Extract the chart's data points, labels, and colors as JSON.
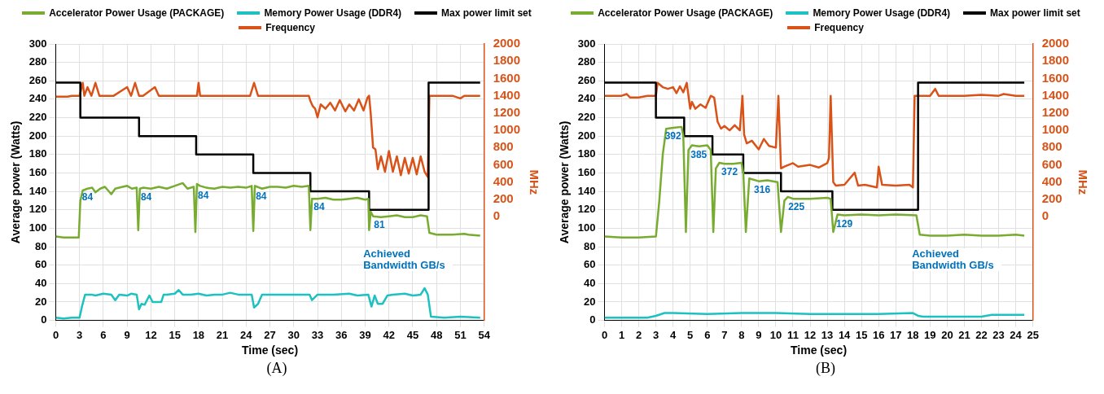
{
  "chart_data": [
    {
      "type": "line",
      "title": "(A)",
      "xlabel": "Time (sec)",
      "ylabel": "Average power (Watts)",
      "y2label": "MHz",
      "xlim": [
        0,
        54
      ],
      "xticks": [
        0,
        3,
        6,
        9,
        12,
        15,
        18,
        21,
        24,
        27,
        30,
        33,
        36,
        39,
        42,
        45,
        48,
        51,
        54
      ],
      "ylim": [
        0,
        300
      ],
      "yticks": [
        0,
        20,
        40,
        60,
        80,
        100,
        120,
        140,
        160,
        180,
        200,
        220,
        240,
        260,
        280,
        300
      ],
      "y2lim": [
        -1200,
        2000
      ],
      "y2ticks": [
        0,
        200,
        400,
        600,
        800,
        1000,
        1200,
        1400,
        1600,
        1800,
        2000
      ],
      "grid": true,
      "legend": "top",
      "marker": "none",
      "line_style": "solid",
      "series": [
        {
          "name": "Accelerator Power Usage (PACKAGE)",
          "color": "#77ac30",
          "x": [
            0,
            1,
            2,
            2.9,
            3.1,
            3.4,
            4,
            4.6,
            5,
            5.6,
            6.2,
            7,
            7.5,
            8,
            9,
            9.6,
            10.2,
            10.4,
            10.6,
            11,
            12,
            13,
            14,
            15,
            16,
            16.6,
            17.4,
            17.6,
            17.8,
            18.2,
            19,
            20,
            21,
            22,
            23,
            24,
            24.7,
            24.9,
            25.1,
            26,
            27,
            28,
            29,
            30,
            31,
            31.9,
            32.1,
            32.3,
            33,
            34,
            35,
            36,
            37,
            38,
            39,
            39.4,
            39.5,
            39.7,
            40,
            41,
            42,
            43,
            44,
            45,
            46,
            46.8,
            47.1,
            48,
            50,
            51.5,
            52,
            53.5
          ],
          "values": [
            91,
            90,
            90,
            90,
            130,
            141,
            143,
            144,
            139,
            143,
            145,
            137,
            143,
            144,
            146,
            143,
            144,
            98,
            143,
            144,
            143,
            145,
            143,
            146,
            149,
            143,
            145,
            96,
            148,
            146,
            144,
            143,
            145,
            144,
            145,
            144,
            146,
            97,
            146,
            143,
            145,
            145,
            144,
            146,
            145,
            146,
            98,
            132,
            132,
            133,
            131,
            131,
            132,
            133,
            131,
            132,
            98,
            118,
            113,
            112,
            113,
            114,
            112,
            112,
            114,
            113,
            95,
            93,
            93,
            94,
            93,
            92
          ]
        },
        {
          "name": "Memory Power Usage (DDR4)",
          "color": "#1ec1c1",
          "x": [
            0,
            1,
            2,
            3,
            3.3,
            3.7,
            4.5,
            5,
            6,
            7,
            7.5,
            8,
            9,
            9.5,
            10.2,
            10.5,
            10.8,
            11.2,
            11.8,
            12.2,
            13.3,
            13.6,
            14,
            15,
            15.5,
            16,
            17,
            18,
            19,
            20,
            21,
            22,
            23,
            24,
            24.7,
            25,
            25.5,
            26,
            28,
            30,
            32,
            32.3,
            33,
            35,
            37,
            38,
            39.4,
            39.8,
            40.2,
            40.6,
            41.2,
            41.8,
            42.5,
            44,
            45,
            46,
            46.5,
            46.9,
            47.3,
            49,
            51,
            53.5
          ],
          "values": [
            3,
            2,
            3,
            3,
            15,
            28,
            28,
            27,
            29,
            28,
            22,
            28,
            27,
            29,
            28,
            12,
            18,
            17,
            27,
            20,
            20,
            28,
            28,
            29,
            33,
            28,
            28,
            29,
            27,
            28,
            28,
            30,
            28,
            28,
            28,
            14,
            18,
            28,
            28,
            28,
            28,
            22,
            28,
            28,
            29,
            27,
            28,
            15,
            27,
            18,
            18,
            27,
            28,
            29,
            27,
            28,
            35,
            28,
            4,
            3,
            4,
            3
          ]
        },
        {
          "name": "Max power limit set",
          "color": "#000000",
          "type": "step",
          "x": [
            0,
            3.1,
            10.5,
            17.7,
            24.9,
            32.1,
            39.5,
            47,
            53.5
          ],
          "values": [
            258,
            220,
            200,
            180,
            160,
            140,
            120,
            258,
            258
          ]
        },
        {
          "name": "Frequency",
          "color": "#d95319",
          "axis": "y2",
          "x": [
            0,
            1.5,
            2,
            3,
            3.4,
            3.6,
            4,
            4.5,
            5,
            5.5,
            6,
            7.3,
            9,
            9.5,
            10,
            10.5,
            11,
            12.5,
            13,
            13.5,
            15,
            17.8,
            18,
            18.2,
            20,
            22,
            24.5,
            25,
            25.5,
            26,
            28,
            30,
            31.9,
            32.1,
            32.4,
            32.7,
            33,
            33.4,
            34,
            34.6,
            35.2,
            35.8,
            36.5,
            37,
            37.6,
            38.2,
            38.8,
            39.3,
            39.5,
            39.7,
            40,
            40.3,
            40.6,
            41,
            41.5,
            42,
            42.5,
            43,
            43.5,
            44,
            44.5,
            45,
            45.5,
            46,
            46.5,
            46.9,
            47.1,
            48,
            50,
            51,
            51.5,
            53.5
          ],
          "values": [
            1390,
            1390,
            1400,
            1400,
            1550,
            1400,
            1500,
            1400,
            1550,
            1400,
            1400,
            1400,
            1500,
            1400,
            1550,
            1400,
            1400,
            1500,
            1400,
            1400,
            1400,
            1400,
            1550,
            1400,
            1400,
            1400,
            1400,
            1550,
            1400,
            1400,
            1400,
            1400,
            1400,
            1340,
            1280,
            1250,
            1150,
            1300,
            1250,
            1320,
            1230,
            1350,
            1220,
            1300,
            1230,
            1360,
            1230,
            1380,
            1400,
            1200,
            800,
            780,
            550,
            700,
            520,
            760,
            520,
            700,
            480,
            680,
            500,
            680,
            490,
            700,
            520,
            460,
            1400,
            1400,
            1400,
            1370,
            1400,
            1400
          ]
        }
      ],
      "annotations": [
        {
          "text": "84",
          "x": 4,
          "y": 143
        },
        {
          "text": "84",
          "x": 11.4,
          "y": 143
        },
        {
          "text": "84",
          "x": 18.6,
          "y": 145
        },
        {
          "text": "84",
          "x": 25.9,
          "y": 144
        },
        {
          "text": "84",
          "x": 33.2,
          "y": 132
        },
        {
          "text": "81",
          "x": 40.8,
          "y": 113
        },
        "Achieved Bandwidth GB/s"
      ]
    },
    {
      "type": "line",
      "title": "(B)",
      "xlabel": "Time (sec)",
      "ylabel": "Average power (Watts)",
      "y2label": "MHz",
      "xlim": [
        0,
        25
      ],
      "xticks": [
        0,
        1,
        2,
        3,
        4,
        5,
        6,
        7,
        8,
        9,
        10,
        11,
        12,
        13,
        14,
        15,
        16,
        17,
        18,
        19,
        20,
        21,
        22,
        23,
        24,
        25
      ],
      "ylim": [
        0,
        300
      ],
      "yticks": [
        0,
        20,
        40,
        60,
        80,
        100,
        120,
        140,
        160,
        180,
        200,
        220,
        240,
        260,
        280,
        300
      ],
      "y2lim": [
        -1200,
        2000
      ],
      "y2ticks": [
        0,
        200,
        400,
        600,
        800,
        1000,
        1200,
        1400,
        1600,
        1800,
        2000
      ],
      "grid": true,
      "legend": "top",
      "marker": "none",
      "line_style": "solid",
      "series": [
        {
          "name": "Accelerator Power Usage (PACKAGE)",
          "color": "#77ac30",
          "x": [
            0,
            1,
            2,
            3,
            3.2,
            3.4,
            3.6,
            4,
            4.5,
            4.6,
            4.75,
            4.9,
            5.1,
            5.5,
            6,
            6.2,
            6.35,
            6.5,
            6.7,
            7,
            7.5,
            8,
            8.1,
            8.25,
            8.45,
            9,
            9.5,
            10.1,
            10.3,
            10.5,
            10.7,
            11,
            12,
            13,
            13.2,
            13.35,
            13.6,
            14,
            15,
            16,
            17,
            18.2,
            18.4,
            19,
            20,
            21,
            22,
            23,
            24,
            24.5
          ],
          "values": [
            91,
            90,
            90,
            91,
            130,
            180,
            208,
            209,
            210,
            200,
            96,
            185,
            190,
            189,
            190,
            185,
            96,
            165,
            171,
            170,
            170,
            171,
            160,
            96,
            154,
            151,
            152,
            150,
            96,
            130,
            134,
            132,
            132,
            133,
            132,
            96,
            115,
            114,
            115,
            114,
            115,
            114,
            93,
            92,
            92,
            93,
            92,
            92,
            93,
            92
          ]
        },
        {
          "name": "Memory Power Usage (DDR4)",
          "color": "#1ec1c1",
          "x": [
            0,
            1,
            2,
            2.5,
            3,
            3.5,
            4,
            6,
            8,
            10,
            12,
            14,
            16,
            18,
            18.3,
            18.6,
            20,
            22,
            22.6,
            23,
            24,
            24.5
          ],
          "values": [
            3,
            3,
            3,
            3,
            5,
            8,
            8,
            7,
            8,
            8,
            7,
            7,
            7,
            8,
            5,
            4,
            4,
            4,
            6,
            6,
            6,
            6
          ]
        },
        {
          "name": "Max power limit set",
          "color": "#000000",
          "type": "step",
          "x": [
            0,
            3,
            4.65,
            6.3,
            8.1,
            10.3,
            13.3,
            18.3,
            24.5
          ],
          "values": [
            258,
            220,
            200,
            180,
            160,
            140,
            120,
            258,
            258
          ]
        },
        {
          "name": "Frequency",
          "color": "#d95319",
          "axis": "y2",
          "x": [
            0,
            1,
            1.3,
            1.5,
            2,
            2.5,
            3,
            3.1,
            3.4,
            3.7,
            4,
            4.2,
            4.4,
            4.6,
            4.8,
            5,
            5.1,
            5.3,
            5.6,
            5.9,
            6.2,
            6.4,
            6.6,
            6.8,
            7,
            7.3,
            7.6,
            7.9,
            8.05,
            8.15,
            8.3,
            8.6,
            9,
            9.3,
            9.6,
            10,
            10.15,
            10.3,
            10.5,
            11,
            11.3,
            12,
            12.5,
            13,
            13.1,
            13.2,
            13.35,
            13.5,
            14,
            14.6,
            14.8,
            15.2,
            15.9,
            16,
            16.2,
            17,
            17.8,
            18,
            18.1,
            18.3,
            19,
            19.3,
            19.5,
            21,
            22,
            23,
            23.3,
            24,
            24.5
          ],
          "values": [
            1400,
            1400,
            1420,
            1380,
            1380,
            1400,
            1400,
            1550,
            1500,
            1480,
            1500,
            1430,
            1510,
            1440,
            1550,
            1250,
            1330,
            1250,
            1300,
            1260,
            1400,
            1380,
            1100,
            1020,
            1050,
            1000,
            1060,
            1000,
            1400,
            950,
            850,
            880,
            780,
            900,
            820,
            800,
            1400,
            560,
            580,
            620,
            580,
            600,
            570,
            620,
            680,
            1400,
            400,
            360,
            370,
            510,
            360,
            370,
            340,
            580,
            370,
            360,
            370,
            340,
            1400,
            1400,
            1400,
            1480,
            1400,
            1400,
            1410,
            1400,
            1420,
            1400,
            1400
          ]
        }
      ],
      "annotations": [
        {
          "text": "392",
          "x": 4,
          "y": 209
        },
        {
          "text": "385",
          "x": 5.5,
          "y": 189
        },
        {
          "text": "372",
          "x": 7.3,
          "y": 170
        },
        {
          "text": "316",
          "x": 9.2,
          "y": 151
        },
        {
          "text": "225",
          "x": 11.2,
          "y": 132
        },
        {
          "text": "129",
          "x": 14,
          "y": 114
        },
        "Achieved Bandwidth GB/s"
      ]
    }
  ]
}
